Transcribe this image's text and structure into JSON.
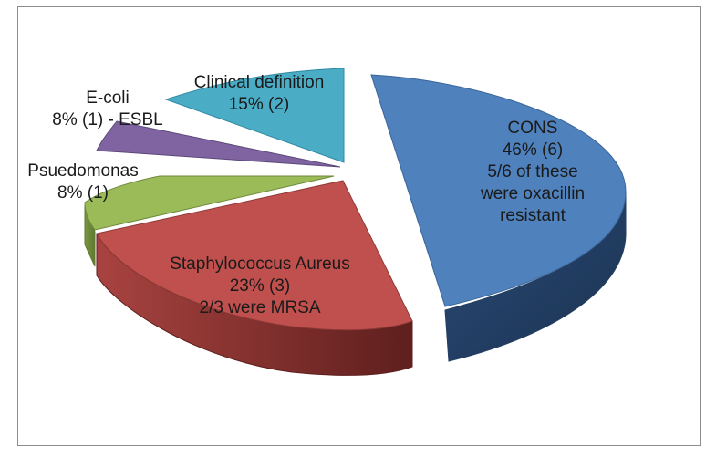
{
  "chart_data": {
    "type": "pie",
    "title": "",
    "three_d": true,
    "exploded": true,
    "slices": [
      {
        "name": "CONS",
        "percent": 46,
        "count": 6,
        "lines": [
          "CONS",
          "46% (6)",
          "5/6 of these",
          "were  oxacillin",
          "resistant"
        ],
        "color": "#4f81bd"
      },
      {
        "name": "Staphylococcus Aureus",
        "percent": 23,
        "count": 3,
        "lines": [
          "Staphylococcus Aureus",
          "23% (3)",
          "2/3 were MRSA"
        ],
        "color": "#c0504d"
      },
      {
        "name": "Psuedomonas",
        "percent": 8,
        "count": 1,
        "lines": [
          "Psuedomonas",
          "8% (1)"
        ],
        "color": "#9bbb59"
      },
      {
        "name": "E-coli",
        "percent": 8,
        "count": 1,
        "lines": [
          "E-coli",
          "8% (1) - ESBL"
        ],
        "color": "#8064a2"
      },
      {
        "name": "Clinical definition",
        "percent": 15,
        "count": 2,
        "lines": [
          "Clinical definition",
          "15% (2)"
        ],
        "color": "#4bacc6"
      }
    ]
  }
}
